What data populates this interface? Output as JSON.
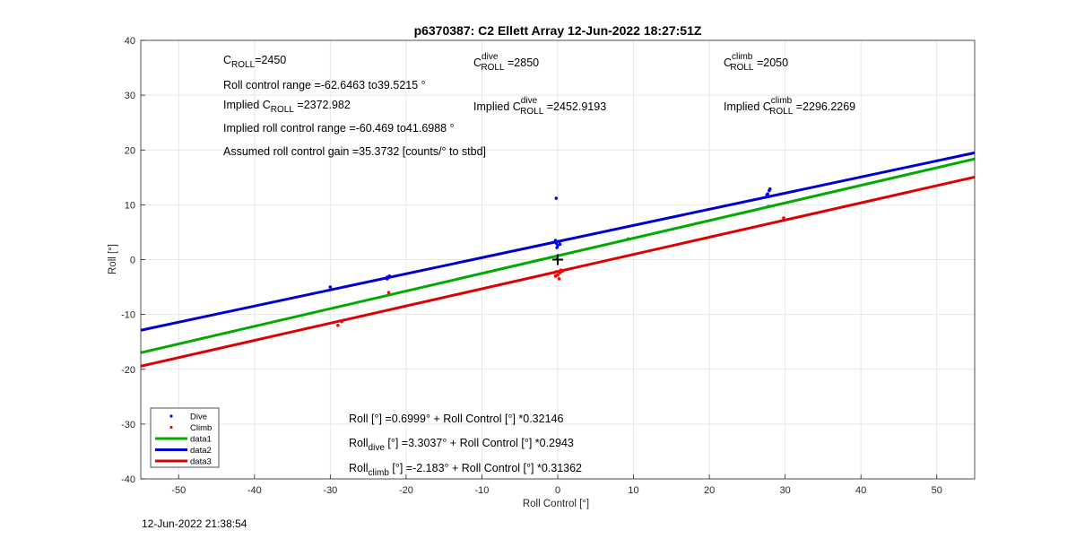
{
  "chart_data": {
    "type": "scatter",
    "title": "p6370387: C2 Ellett Array 12-Jun-2022 18:27:51Z",
    "xlabel": "Roll Control [°]",
    "ylabel": "Roll [°]",
    "xlim": [
      -55,
      55
    ],
    "ylim": [
      -40,
      40
    ],
    "x_ticks": [
      "-50",
      "-40",
      "-30",
      "-20",
      "-10",
      "0",
      "10",
      "20",
      "30",
      "40",
      "50"
    ],
    "x_tick_values": [
      -50,
      -40,
      -30,
      -20,
      -10,
      0,
      10,
      20,
      30,
      40,
      50
    ],
    "y_ticks": [
      "40",
      "30",
      "20",
      "10",
      "0",
      "-10",
      "-20",
      "-30",
      "-40"
    ],
    "y_tick_values": [
      40,
      30,
      20,
      10,
      0,
      -10,
      -20,
      -30,
      -40
    ],
    "grid": true,
    "legend": {
      "placement": "bottom-left",
      "entries": [
        {
          "label": "Dive",
          "kind": "marker",
          "color": "#0000ff"
        },
        {
          "label": "Climb",
          "kind": "marker",
          "color": "#ff0000"
        },
        {
          "label": "data1",
          "kind": "line",
          "color": "#00aa00"
        },
        {
          "label": "data2",
          "kind": "line",
          "color": "#0000cc"
        },
        {
          "label": "data3",
          "kind": "line",
          "color": "#dd0000"
        }
      ]
    },
    "series": [
      {
        "name": "Dive",
        "kind": "scatter",
        "color": "#0000ff",
        "points": [
          [
            -30,
            -5
          ],
          [
            -22.5,
            -3.5
          ],
          [
            -22.5,
            -3.2
          ],
          [
            -22.2,
            -3
          ],
          [
            -0.2,
            11.2
          ],
          [
            -0.3,
            3.5
          ],
          [
            -0.2,
            3
          ],
          [
            0,
            2.6
          ],
          [
            0.2,
            3.3
          ],
          [
            0.3,
            2.8
          ],
          [
            -0.1,
            2.2
          ],
          [
            27.7,
            12
          ],
          [
            27.8,
            11.5
          ],
          [
            27.9,
            12.6
          ],
          [
            28,
            12.9
          ],
          [
            27.6,
            11.8
          ]
        ]
      },
      {
        "name": "Climb",
        "kind": "scatter",
        "color": "#ff0000",
        "points": [
          [
            -29,
            -12
          ],
          [
            -28.5,
            -11.3
          ],
          [
            -22.3,
            -6
          ],
          [
            -0.2,
            -2.2
          ],
          [
            0,
            -2.8
          ],
          [
            0.2,
            -3.5
          ],
          [
            0.4,
            -1.9
          ],
          [
            0.3,
            -2.4
          ],
          [
            -0.3,
            -3
          ],
          [
            0.6,
            -2.1
          ],
          [
            29.8,
            7.6
          ]
        ]
      },
      {
        "name": "Green points",
        "kind": "scatter",
        "color": "#00aa00",
        "points": [
          [
            9.3,
            3.8
          ],
          [
            27.8,
            9.7
          ],
          [
            -0.1,
            0.3
          ]
        ]
      },
      {
        "name": "data1",
        "kind": "line",
        "color": "#00aa00",
        "intercept": 0.6999,
        "slope": 0.32146
      },
      {
        "name": "data2",
        "kind": "line",
        "color": "#0000cc",
        "intercept": 3.3037,
        "slope": 0.2943
      },
      {
        "name": "data3",
        "kind": "line",
        "color": "#dd0000",
        "intercept": -2.183,
        "slope": 0.31362
      }
    ],
    "center_marker": [
      0,
      0
    ],
    "annotations": {
      "c_roll": {
        "prefix": "C",
        "sub": "ROLL",
        "value": "=2450"
      },
      "c_roll_dive": {
        "prefix": "C",
        "sup": "dive",
        "sub": "ROLL",
        "value": " =2850"
      },
      "c_roll_climb": {
        "prefix": "C",
        "sup": "climb",
        "sub": "ROLL",
        "value": " =2050"
      },
      "roll_control_range": "Roll control range =-62.6463 to39.5215 °",
      "implied_c_roll": {
        "prefix": "Implied C",
        "sub": "ROLL",
        "value": " =2372.982"
      },
      "implied_c_roll_dive": {
        "prefix": "Implied C",
        "sup": "dive",
        "sub": "ROLL",
        "value": " =2452.9193"
      },
      "implied_c_roll_climb": {
        "prefix": "Implied C",
        "sup": "climb",
        "sub": "ROLL",
        "value": " =2296.2269"
      },
      "implied_range": "Implied roll control range =-60.469 to41.6988 °",
      "gain": "Assumed roll control gain =35.3732 [counts/° to stbd]",
      "fit_all": "Roll [°] =0.6999° + Roll Control [°] *0.32146",
      "fit_dive": {
        "prefix": "Roll",
        "sub": "dive",
        "value": " [°] =3.3037° + Roll Control [°] *0.2943"
      },
      "fit_climb": {
        "prefix": "Roll",
        "sub": "climb",
        "value": " [°] =-2.183° + Roll Control [°] *0.31362"
      }
    }
  },
  "footer": {
    "timestamp": "12-Jun-2022 21:38:54"
  }
}
